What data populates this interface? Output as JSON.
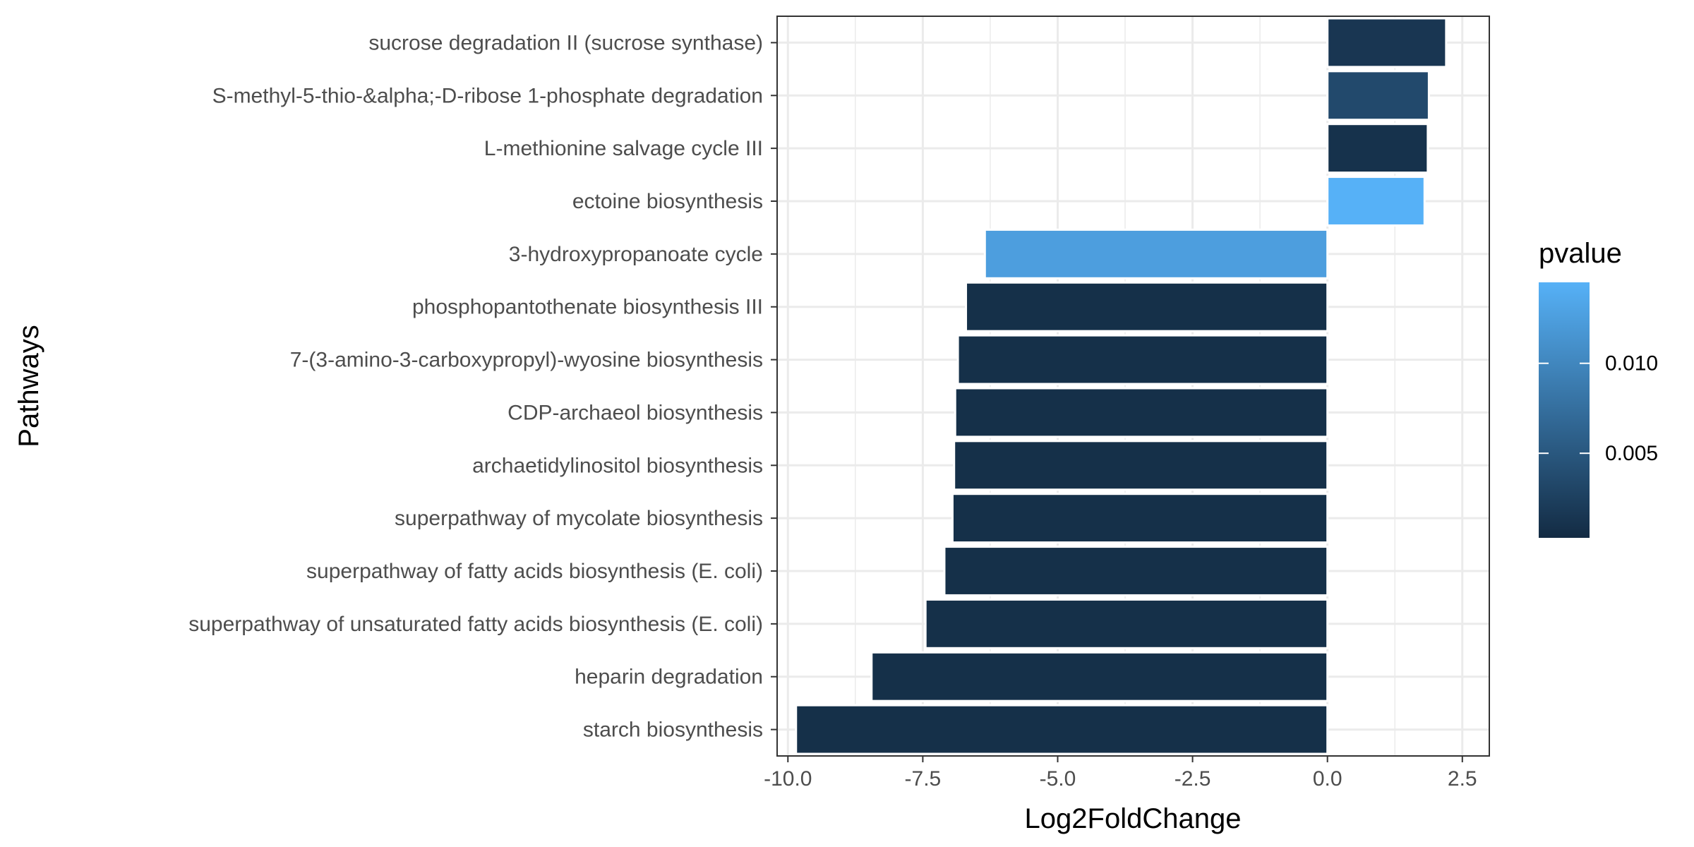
{
  "chart_data": {
    "type": "bar",
    "orientation": "horizontal",
    "xlabel": "Log2FoldChange",
    "ylabel": "Pathways",
    "xlim": [
      -10.2,
      3.0
    ],
    "x_ticks": [
      -10.0,
      -7.5,
      -5.0,
      -2.5,
      0.0,
      2.5
    ],
    "x_tick_labels": [
      "-10.0",
      "-7.5",
      "-5.0",
      "-2.5",
      "0.0",
      "2.5"
    ],
    "grid": true,
    "legend": {
      "title": "pvalue",
      "placement": "right",
      "type": "colorbar",
      "range": [
        0.0003,
        0.0145
      ],
      "ticks": [
        0.005,
        0.01
      ],
      "tick_labels": [
        "0.005",
        "0.010"
      ],
      "color_low": "#132B43",
      "color_high": "#56B1F7"
    },
    "categories": [
      "sucrose degradation II (sucrose synthase)",
      "S-methyl-5-thio-&alpha;-D-ribose 1-phosphate degradation",
      "L-methionine salvage cycle III",
      "ectoine biosynthesis",
      "3-hydroxypropanoate cycle",
      "phosphopantothenate biosynthesis III",
      "7-(3-amino-3-carboxypropyl)-wyosine biosynthesis",
      "CDP-archaeol biosynthesis",
      "archaetidylinositol biosynthesis",
      "superpathway of mycolate biosynthesis",
      "superpathway of fatty acids biosynthesis (E. coli)",
      "superpathway of unsaturated fatty acids biosynthesis (E. coli)",
      "heparin degradation",
      "starch biosynthesis"
    ],
    "values": [
      2.2,
      1.88,
      1.86,
      1.8,
      -6.35,
      -6.7,
      -6.85,
      -6.9,
      -6.92,
      -6.95,
      -7.1,
      -7.45,
      -8.45,
      -9.85
    ],
    "pvalues": [
      0.0015,
      0.0035,
      0.001,
      0.0145,
      0.0125,
      0.0008,
      0.0008,
      0.0008,
      0.0008,
      0.0008,
      0.0008,
      0.0008,
      0.0008,
      0.0008
    ]
  }
}
